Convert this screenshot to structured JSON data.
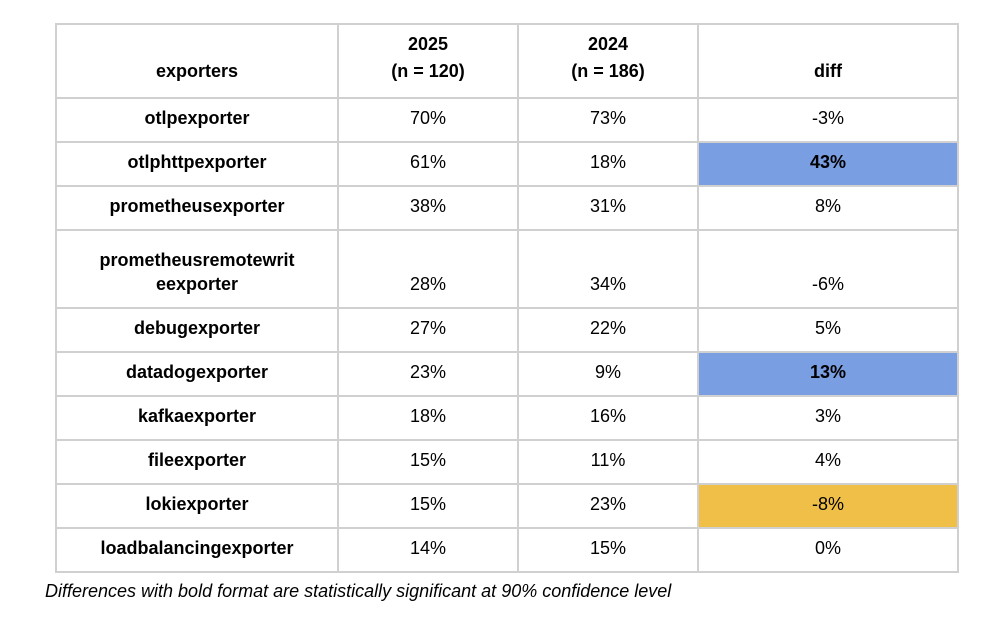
{
  "table": {
    "columns": [
      {
        "line1": "",
        "line2": "exporters"
      },
      {
        "line1": "2025",
        "line2": "(n = 120)"
      },
      {
        "line1": "2024",
        "line2": "(n = 186)"
      },
      {
        "line1": "",
        "line2": "diff"
      }
    ],
    "rows": [
      {
        "exporter": "otlpexporter",
        "v2025": "70%",
        "v2024": "73%",
        "diff": "-3%",
        "diff_highlight": "",
        "diff_bold": false,
        "tall": false
      },
      {
        "exporter": "otlphttpexporter",
        "v2025": "61%",
        "v2024": "18%",
        "diff": "43%",
        "diff_highlight": "blue",
        "diff_bold": true,
        "tall": false
      },
      {
        "exporter": "prometheusexporter",
        "v2025": "38%",
        "v2024": "31%",
        "diff": "8%",
        "diff_highlight": "",
        "diff_bold": false,
        "tall": false
      },
      {
        "exporter": "prometheusremotewriteexporter",
        "v2025": "28%",
        "v2024": "34%",
        "diff": "-6%",
        "diff_highlight": "",
        "diff_bold": false,
        "tall": true
      },
      {
        "exporter": "debugexporter",
        "v2025": "27%",
        "v2024": "22%",
        "diff": "5%",
        "diff_highlight": "",
        "diff_bold": false,
        "tall": false
      },
      {
        "exporter": "datadogexporter",
        "v2025": "23%",
        "v2024": "9%",
        "diff": "13%",
        "diff_highlight": "blue",
        "diff_bold": true,
        "tall": false
      },
      {
        "exporter": "kafkaexporter",
        "v2025": "18%",
        "v2024": "16%",
        "diff": "3%",
        "diff_highlight": "",
        "diff_bold": false,
        "tall": false
      },
      {
        "exporter": "fileexporter",
        "v2025": "15%",
        "v2024": "11%",
        "diff": "4%",
        "diff_highlight": "",
        "diff_bold": false,
        "tall": false
      },
      {
        "exporter": "lokiexporter",
        "v2025": "15%",
        "v2024": "23%",
        "diff": "-8%",
        "diff_highlight": "orange",
        "diff_bold": false,
        "tall": false
      },
      {
        "exporter": "loadbalancingexporter",
        "v2025": "14%",
        "v2024": "15%",
        "diff": "0%",
        "diff_highlight": "",
        "diff_bold": false,
        "tall": false
      }
    ],
    "footnote": "Differences with bold format are statistically significant at 90% confidence level"
  },
  "colors": {
    "highlight_blue": "#7a9ee2",
    "highlight_orange": "#f0bf47",
    "border": "#d0d0d0"
  },
  "chart_data": {
    "type": "table",
    "title": "",
    "categories": [
      "otlpexporter",
      "otlphttpexporter",
      "prometheusexporter",
      "prometheusremotewriteexporter",
      "debugexporter",
      "datadogexporter",
      "kafkaexporter",
      "fileexporter",
      "lokiexporter",
      "loadbalancingexporter"
    ],
    "series": [
      {
        "name": "2025 (n = 120)",
        "values": [
          70,
          61,
          38,
          28,
          27,
          23,
          18,
          15,
          15,
          14
        ],
        "unit": "%"
      },
      {
        "name": "2024 (n = 186)",
        "values": [
          73,
          18,
          31,
          34,
          22,
          9,
          16,
          11,
          23,
          15
        ],
        "unit": "%"
      },
      {
        "name": "diff",
        "values": [
          -3,
          43,
          8,
          -6,
          5,
          13,
          3,
          4,
          -8,
          0
        ],
        "unit": "%"
      }
    ],
    "highlights": [
      {
        "row": "otlphttpexporter",
        "column": "diff",
        "color": "blue",
        "bold": true
      },
      {
        "row": "datadogexporter",
        "column": "diff",
        "color": "blue",
        "bold": true
      },
      {
        "row": "lokiexporter",
        "column": "diff",
        "color": "orange",
        "bold": false
      }
    ],
    "footnote": "Differences with bold format are statistically significant at 90% confidence level"
  }
}
